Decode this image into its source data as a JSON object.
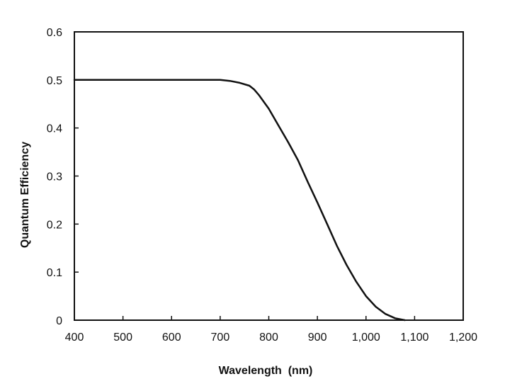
{
  "chart_data": {
    "type": "line",
    "title": "",
    "xlabel": "Wavelength  (nm)",
    "ylabel": "Quantum Efficiency",
    "xlim": [
      400,
      1200
    ],
    "ylim": [
      0,
      0.6
    ],
    "x_ticks": [
      400,
      500,
      600,
      700,
      800,
      900,
      1000,
      1100,
      1200
    ],
    "x_tick_labels": [
      "400",
      "500",
      "600",
      "700",
      "800",
      "900",
      "1,000",
      "1,100",
      "1,200"
    ],
    "y_ticks": [
      0,
      0.1,
      0.2,
      0.3,
      0.4,
      0.5,
      0.6
    ],
    "y_tick_labels": [
      "0",
      "0.1",
      "0.2",
      "0.3",
      "0.4",
      "0.5",
      "0.6"
    ],
    "grid": false,
    "legend": "none",
    "colors": {
      "line": "#111111",
      "frame": "#111111"
    },
    "series": [
      {
        "x": [
          400,
          500,
          600,
          650,
          700,
          720,
          740,
          760,
          770,
          780,
          800,
          820,
          840,
          860,
          880,
          900,
          920,
          940,
          960,
          980,
          1000,
          1020,
          1040,
          1060,
          1080
        ],
        "y": [
          0.5,
          0.5,
          0.5,
          0.5,
          0.5,
          0.498,
          0.494,
          0.488,
          0.48,
          0.468,
          0.44,
          0.405,
          0.37,
          0.333,
          0.288,
          0.245,
          0.2,
          0.155,
          0.115,
          0.08,
          0.05,
          0.028,
          0.013,
          0.004,
          0.0
        ]
      }
    ]
  }
}
